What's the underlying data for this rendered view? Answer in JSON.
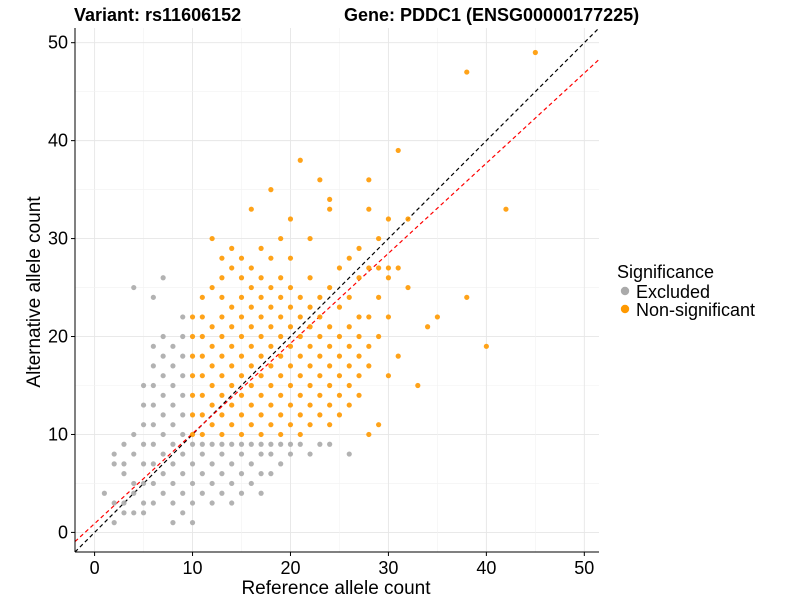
{
  "chart_data": {
    "type": "scatter",
    "title_left": "Variant: rs11606152",
    "title_right": "Gene: PDDC1 (ENSG00000177225)",
    "xlabel": "Reference allele count",
    "ylabel": "Alternative allele count",
    "xlim": [
      -2,
      51.5
    ],
    "ylim": [
      -2,
      51.5
    ],
    "x_ticks": [
      0,
      10,
      20,
      30,
      40,
      50
    ],
    "y_ticks": [
      0,
      10,
      20,
      30,
      40,
      50
    ],
    "grid": true,
    "legend": {
      "title": "Significance",
      "position": "right",
      "entries": [
        {
          "name": "Excluded",
          "color": "#aaaaaa"
        },
        {
          "name": "Non-significant",
          "color": "#ff9900"
        }
      ]
    },
    "reference_lines": [
      {
        "name": "y = x",
        "color": "#000000",
        "style": "dashed",
        "slope": 1,
        "intercept": 0
      },
      {
        "name": "fit",
        "color": "#ff0000",
        "style": "dashed",
        "slope": 0.92,
        "intercept": 0.9
      }
    ],
    "series": [
      {
        "name": "Excluded",
        "color": "#aaaaaa",
        "points": [
          [
            1,
            4
          ],
          [
            2,
            1
          ],
          [
            2,
            3
          ],
          [
            2,
            7
          ],
          [
            2,
            8
          ],
          [
            3,
            2
          ],
          [
            3,
            3
          ],
          [
            3,
            6
          ],
          [
            3,
            7
          ],
          [
            3,
            9
          ],
          [
            4,
            2
          ],
          [
            4,
            4
          ],
          [
            4,
            5
          ],
          [
            4,
            8
          ],
          [
            4,
            10
          ],
          [
            4,
            25
          ],
          [
            5,
            2
          ],
          [
            5,
            3
          ],
          [
            5,
            5
          ],
          [
            5,
            7
          ],
          [
            5,
            9
          ],
          [
            5,
            11
          ],
          [
            5,
            13
          ],
          [
            5,
            15
          ],
          [
            6,
            3
          ],
          [
            6,
            5
          ],
          [
            6,
            7
          ],
          [
            6,
            9
          ],
          [
            6,
            11
          ],
          [
            6,
            13
          ],
          [
            6,
            15
          ],
          [
            6,
            17
          ],
          [
            6,
            19
          ],
          [
            6,
            24
          ],
          [
            7,
            4
          ],
          [
            7,
            6
          ],
          [
            7,
            8
          ],
          [
            7,
            10
          ],
          [
            7,
            12
          ],
          [
            7,
            14
          ],
          [
            7,
            16
          ],
          [
            7,
            18
          ],
          [
            7,
            20
          ],
          [
            7,
            26
          ],
          [
            8,
            1
          ],
          [
            8,
            3
          ],
          [
            8,
            5
          ],
          [
            8,
            7
          ],
          [
            8,
            9
          ],
          [
            8,
            11
          ],
          [
            8,
            13
          ],
          [
            8,
            15
          ],
          [
            8,
            17
          ],
          [
            8,
            19
          ],
          [
            9,
            2
          ],
          [
            9,
            4
          ],
          [
            9,
            6
          ],
          [
            9,
            8
          ],
          [
            9,
            10
          ],
          [
            9,
            12
          ],
          [
            9,
            14
          ],
          [
            9,
            16
          ],
          [
            9,
            18
          ],
          [
            9,
            20
          ],
          [
            9,
            22
          ],
          [
            10,
            1
          ],
          [
            10,
            3
          ],
          [
            10,
            5
          ],
          [
            10,
            7
          ],
          [
            10,
            9
          ],
          [
            11,
            4
          ],
          [
            11,
            6
          ],
          [
            11,
            8
          ],
          [
            11,
            9
          ],
          [
            12,
            3
          ],
          [
            12,
            5
          ],
          [
            12,
            7
          ],
          [
            12,
            9
          ],
          [
            13,
            4
          ],
          [
            13,
            6
          ],
          [
            13,
            8
          ],
          [
            13,
            9
          ],
          [
            14,
            3
          ],
          [
            14,
            5
          ],
          [
            14,
            7
          ],
          [
            14,
            9
          ],
          [
            15,
            4
          ],
          [
            15,
            6
          ],
          [
            15,
            8
          ],
          [
            15,
            9
          ],
          [
            16,
            5
          ],
          [
            16,
            7
          ],
          [
            16,
            9
          ],
          [
            17,
            4
          ],
          [
            17,
            6
          ],
          [
            17,
            8
          ],
          [
            17,
            9
          ],
          [
            18,
            6
          ],
          [
            18,
            8
          ],
          [
            18,
            9
          ],
          [
            19,
            7
          ],
          [
            19,
            9
          ],
          [
            20,
            8
          ],
          [
            20,
            9
          ],
          [
            21,
            9
          ],
          [
            22,
            8
          ],
          [
            23,
            9
          ],
          [
            24,
            9
          ],
          [
            26,
            8
          ]
        ]
      },
      {
        "name": "Non-significant",
        "color": "#ff9900",
        "points": [
          [
            10,
            10
          ],
          [
            10,
            12
          ],
          [
            10,
            14
          ],
          [
            10,
            16
          ],
          [
            10,
            18
          ],
          [
            10,
            20
          ],
          [
            10,
            22
          ],
          [
            11,
            10
          ],
          [
            11,
            12
          ],
          [
            11,
            14
          ],
          [
            11,
            16
          ],
          [
            11,
            18
          ],
          [
            11,
            20
          ],
          [
            11,
            22
          ],
          [
            11,
            24
          ],
          [
            12,
            11
          ],
          [
            12,
            13
          ],
          [
            12,
            15
          ],
          [
            12,
            17
          ],
          [
            12,
            19
          ],
          [
            12,
            21
          ],
          [
            12,
            25
          ],
          [
            12,
            30
          ],
          [
            13,
            10
          ],
          [
            13,
            12
          ],
          [
            13,
            14
          ],
          [
            13,
            16
          ],
          [
            13,
            18
          ],
          [
            13,
            20
          ],
          [
            13,
            22
          ],
          [
            13,
            24
          ],
          [
            13,
            26
          ],
          [
            13,
            28
          ],
          [
            14,
            11
          ],
          [
            14,
            13
          ],
          [
            14,
            15
          ],
          [
            14,
            17
          ],
          [
            14,
            19
          ],
          [
            14,
            21
          ],
          [
            14,
            23
          ],
          [
            14,
            27
          ],
          [
            14,
            29
          ],
          [
            15,
            10
          ],
          [
            15,
            12
          ],
          [
            15,
            14
          ],
          [
            15,
            16
          ],
          [
            15,
            18
          ],
          [
            15,
            20
          ],
          [
            15,
            22
          ],
          [
            15,
            24
          ],
          [
            15,
            26
          ],
          [
            15,
            28
          ],
          [
            16,
            11
          ],
          [
            16,
            13
          ],
          [
            16,
            15
          ],
          [
            16,
            17
          ],
          [
            16,
            19
          ],
          [
            16,
            21
          ],
          [
            16,
            23
          ],
          [
            16,
            25
          ],
          [
            16,
            27
          ],
          [
            16,
            33
          ],
          [
            17,
            10
          ],
          [
            17,
            12
          ],
          [
            17,
            14
          ],
          [
            17,
            16
          ],
          [
            17,
            18
          ],
          [
            17,
            20
          ],
          [
            17,
            22
          ],
          [
            17,
            24
          ],
          [
            17,
            26
          ],
          [
            17,
            29
          ],
          [
            18,
            11
          ],
          [
            18,
            13
          ],
          [
            18,
            15
          ],
          [
            18,
            17
          ],
          [
            18,
            19
          ],
          [
            18,
            21
          ],
          [
            18,
            23
          ],
          [
            18,
            25
          ],
          [
            18,
            28
          ],
          [
            18,
            35
          ],
          [
            19,
            10
          ],
          [
            19,
            12
          ],
          [
            19,
            14
          ],
          [
            19,
            16
          ],
          [
            19,
            18
          ],
          [
            19,
            20
          ],
          [
            19,
            22
          ],
          [
            19,
            24
          ],
          [
            19,
            26
          ],
          [
            19,
            30
          ],
          [
            20,
            11
          ],
          [
            20,
            13
          ],
          [
            20,
            15
          ],
          [
            20,
            17
          ],
          [
            20,
            19
          ],
          [
            20,
            21
          ],
          [
            20,
            23
          ],
          [
            20,
            25
          ],
          [
            20,
            28
          ],
          [
            20,
            32
          ],
          [
            21,
            10
          ],
          [
            21,
            12
          ],
          [
            21,
            14
          ],
          [
            21,
            16
          ],
          [
            21,
            18
          ],
          [
            21,
            20
          ],
          [
            21,
            22
          ],
          [
            21,
            24
          ],
          [
            21,
            38
          ],
          [
            22,
            11
          ],
          [
            22,
            13
          ],
          [
            22,
            15
          ],
          [
            22,
            17
          ],
          [
            22,
            19
          ],
          [
            22,
            21
          ],
          [
            22,
            23
          ],
          [
            22,
            26
          ],
          [
            22,
            30
          ],
          [
            23,
            12
          ],
          [
            23,
            14
          ],
          [
            23,
            16
          ],
          [
            23,
            18
          ],
          [
            23,
            20
          ],
          [
            23,
            22
          ],
          [
            23,
            24
          ],
          [
            23,
            36
          ],
          [
            24,
            11
          ],
          [
            24,
            13
          ],
          [
            24,
            15
          ],
          [
            24,
            17
          ],
          [
            24,
            19
          ],
          [
            24,
            21
          ],
          [
            24,
            25
          ],
          [
            24,
            33
          ],
          [
            24,
            34
          ],
          [
            25,
            12
          ],
          [
            25,
            14
          ],
          [
            25,
            16
          ],
          [
            25,
            18
          ],
          [
            25,
            20
          ],
          [
            25,
            23
          ],
          [
            25,
            27
          ],
          [
            26,
            13
          ],
          [
            26,
            15
          ],
          [
            26,
            17
          ],
          [
            26,
            19
          ],
          [
            26,
            21
          ],
          [
            26,
            24
          ],
          [
            26,
            28
          ],
          [
            27,
            14
          ],
          [
            27,
            16
          ],
          [
            27,
            18
          ],
          [
            27,
            20
          ],
          [
            27,
            22
          ],
          [
            27,
            26
          ],
          [
            27,
            29
          ],
          [
            28,
            10
          ],
          [
            28,
            17
          ],
          [
            28,
            19
          ],
          [
            28,
            22
          ],
          [
            28,
            27
          ],
          [
            28,
            33
          ],
          [
            28,
            36
          ],
          [
            29,
            11
          ],
          [
            29,
            20
          ],
          [
            29,
            24
          ],
          [
            29,
            27
          ],
          [
            29,
            30
          ],
          [
            30,
            16
          ],
          [
            30,
            22
          ],
          [
            30,
            26
          ],
          [
            30,
            27
          ],
          [
            30,
            32
          ],
          [
            31,
            18
          ],
          [
            31,
            27
          ],
          [
            31,
            39
          ],
          [
            32,
            25
          ],
          [
            32,
            32
          ],
          [
            33,
            15
          ],
          [
            34,
            21
          ],
          [
            35,
            22
          ],
          [
            38,
            24
          ],
          [
            38,
            47
          ],
          [
            40,
            19
          ],
          [
            42,
            33
          ],
          [
            45,
            49
          ]
        ]
      }
    ]
  }
}
